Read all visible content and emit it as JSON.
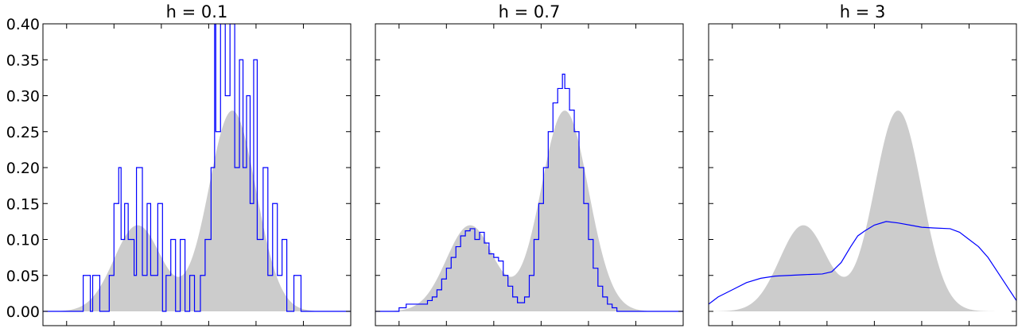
{
  "chart_data": [
    {
      "type": "area",
      "title": "h = 0.1",
      "ylim": [
        0,
        0.4
      ],
      "yticks": [
        "0.00",
        "0.05",
        "0.10",
        "0.15",
        "0.20",
        "0.25",
        "0.30",
        "0.35",
        "0.40"
      ],
      "yticks_shown": true,
      "xlim": [
        -3,
        10
      ],
      "grid": false,
      "series": [
        {
          "role": "true-density",
          "kind": "filled",
          "color": "#cccccc",
          "mixture": [
            {
              "weight": 0.3,
              "mean": 1.0,
              "sd": 1.0
            },
            {
              "weight": 0.7,
              "mean": 5.0,
              "sd": 1.0
            }
          ]
        },
        {
          "role": "estimate",
          "kind": "step",
          "color": "#0000ff",
          "points": [
            [
              -3,
              0
            ],
            [
              -1.3,
              0
            ],
            [
              -1.3,
              0.05
            ],
            [
              -1.0,
              0.05
            ],
            [
              -1.0,
              0
            ],
            [
              -0.9,
              0
            ],
            [
              -0.9,
              0.05
            ],
            [
              -0.6,
              0.05
            ],
            [
              -0.6,
              0
            ],
            [
              -0.2,
              0
            ],
            [
              -0.2,
              0.05
            ],
            [
              0.0,
              0.05
            ],
            [
              0.0,
              0.15
            ],
            [
              0.2,
              0.15
            ],
            [
              0.2,
              0.2
            ],
            [
              0.3,
              0.2
            ],
            [
              0.3,
              0.1
            ],
            [
              0.45,
              0.1
            ],
            [
              0.45,
              0.15
            ],
            [
              0.6,
              0.15
            ],
            [
              0.6,
              0.1
            ],
            [
              0.85,
              0.1
            ],
            [
              0.85,
              0.05
            ],
            [
              0.95,
              0.05
            ],
            [
              0.95,
              0.2
            ],
            [
              1.2,
              0.2
            ],
            [
              1.2,
              0.05
            ],
            [
              1.4,
              0.05
            ],
            [
              1.4,
              0.15
            ],
            [
              1.55,
              0.15
            ],
            [
              1.55,
              0.05
            ],
            [
              1.85,
              0.05
            ],
            [
              1.85,
              0.15
            ],
            [
              2.05,
              0.15
            ],
            [
              2.05,
              0
            ],
            [
              2.2,
              0
            ],
            [
              2.2,
              0.05
            ],
            [
              2.4,
              0.05
            ],
            [
              2.4,
              0.1
            ],
            [
              2.6,
              0.1
            ],
            [
              2.6,
              0
            ],
            [
              2.8,
              0
            ],
            [
              2.8,
              0.1
            ],
            [
              3.0,
              0.1
            ],
            [
              3.0,
              0
            ],
            [
              3.2,
              0
            ],
            [
              3.2,
              0.05
            ],
            [
              3.4,
              0.05
            ],
            [
              3.4,
              0
            ],
            [
              3.65,
              0
            ],
            [
              3.65,
              0.05
            ],
            [
              3.85,
              0.05
            ],
            [
              3.85,
              0.1
            ],
            [
              4.1,
              0.1
            ],
            [
              4.1,
              0.2
            ],
            [
              4.25,
              0.2
            ],
            [
              4.25,
              0.4
            ],
            [
              4.3,
              0.4
            ],
            [
              4.3,
              0.25
            ],
            [
              4.5,
              0.25
            ],
            [
              4.5,
              0.4
            ],
            [
              4.7,
              0.4
            ],
            [
              4.7,
              0.3
            ],
            [
              4.9,
              0.3
            ],
            [
              4.9,
              0.4
            ],
            [
              5.1,
              0.4
            ],
            [
              5.1,
              0.2
            ],
            [
              5.3,
              0.2
            ],
            [
              5.3,
              0.35
            ],
            [
              5.45,
              0.35
            ],
            [
              5.45,
              0.2
            ],
            [
              5.6,
              0.2
            ],
            [
              5.6,
              0.3
            ],
            [
              5.75,
              0.3
            ],
            [
              5.75,
              0.15
            ],
            [
              5.9,
              0.15
            ],
            [
              5.9,
              0.35
            ],
            [
              6.05,
              0.35
            ],
            [
              6.05,
              0.1
            ],
            [
              6.3,
              0.1
            ],
            [
              6.3,
              0.2
            ],
            [
              6.5,
              0.2
            ],
            [
              6.5,
              0.05
            ],
            [
              6.7,
              0.05
            ],
            [
              6.7,
              0.15
            ],
            [
              6.9,
              0.15
            ],
            [
              6.9,
              0.05
            ],
            [
              7.1,
              0.05
            ],
            [
              7.1,
              0.1
            ],
            [
              7.3,
              0.1
            ],
            [
              7.3,
              0
            ],
            [
              7.6,
              0
            ],
            [
              7.6,
              0.05
            ],
            [
              7.9,
              0.05
            ],
            [
              7.9,
              0
            ],
            [
              10,
              0
            ]
          ]
        }
      ]
    },
    {
      "type": "area",
      "title": "h = 0.7",
      "ylim": [
        0,
        0.4
      ],
      "yticks_shown": false,
      "xlim": [
        -3,
        10
      ],
      "grid": false,
      "series": [
        {
          "role": "true-density",
          "kind": "filled",
          "color": "#cccccc",
          "mixture": [
            {
              "weight": 0.3,
              "mean": 1.0,
              "sd": 1.0
            },
            {
              "weight": 0.7,
              "mean": 5.0,
              "sd": 1.0
            }
          ]
        },
        {
          "role": "estimate",
          "kind": "step",
          "color": "#0000ff",
          "points": [
            [
              -3,
              0
            ],
            [
              -2.0,
              0
            ],
            [
              -2.0,
              0.005
            ],
            [
              -1.7,
              0.005
            ],
            [
              -1.7,
              0.01
            ],
            [
              -0.8,
              0.01
            ],
            [
              -0.8,
              0.015
            ],
            [
              -0.6,
              0.015
            ],
            [
              -0.6,
              0.02
            ],
            [
              -0.4,
              0.02
            ],
            [
              -0.4,
              0.03
            ],
            [
              -0.2,
              0.03
            ],
            [
              -0.2,
              0.045
            ],
            [
              0.0,
              0.045
            ],
            [
              0.0,
              0.06
            ],
            [
              0.2,
              0.06
            ],
            [
              0.2,
              0.075
            ],
            [
              0.4,
              0.075
            ],
            [
              0.4,
              0.09
            ],
            [
              0.6,
              0.09
            ],
            [
              0.6,
              0.105
            ],
            [
              0.8,
              0.105
            ],
            [
              0.8,
              0.112
            ],
            [
              1.0,
              0.112
            ],
            [
              1.0,
              0.115
            ],
            [
              1.2,
              0.115
            ],
            [
              1.2,
              0.1
            ],
            [
              1.4,
              0.1
            ],
            [
              1.4,
              0.11
            ],
            [
              1.6,
              0.11
            ],
            [
              1.6,
              0.095
            ],
            [
              1.8,
              0.095
            ],
            [
              1.8,
              0.08
            ],
            [
              2.0,
              0.08
            ],
            [
              2.0,
              0.075
            ],
            [
              2.2,
              0.075
            ],
            [
              2.2,
              0.07
            ],
            [
              2.4,
              0.07
            ],
            [
              2.4,
              0.05
            ],
            [
              2.6,
              0.05
            ],
            [
              2.6,
              0.035
            ],
            [
              2.8,
              0.035
            ],
            [
              2.8,
              0.02
            ],
            [
              3.0,
              0.02
            ],
            [
              3.0,
              0.012
            ],
            [
              3.3,
              0.012
            ],
            [
              3.3,
              0.02
            ],
            [
              3.5,
              0.02
            ],
            [
              3.5,
              0.05
            ],
            [
              3.7,
              0.05
            ],
            [
              3.7,
              0.1
            ],
            [
              3.9,
              0.1
            ],
            [
              3.9,
              0.15
            ],
            [
              4.1,
              0.15
            ],
            [
              4.1,
              0.2
            ],
            [
              4.3,
              0.2
            ],
            [
              4.3,
              0.25
            ],
            [
              4.5,
              0.25
            ],
            [
              4.5,
              0.29
            ],
            [
              4.7,
              0.29
            ],
            [
              4.7,
              0.31
            ],
            [
              4.9,
              0.31
            ],
            [
              4.9,
              0.33
            ],
            [
              5.0,
              0.33
            ],
            [
              5.0,
              0.31
            ],
            [
              5.2,
              0.31
            ],
            [
              5.2,
              0.28
            ],
            [
              5.4,
              0.28
            ],
            [
              5.4,
              0.25
            ],
            [
              5.6,
              0.25
            ],
            [
              5.6,
              0.2
            ],
            [
              5.8,
              0.2
            ],
            [
              5.8,
              0.15
            ],
            [
              6.0,
              0.15
            ],
            [
              6.0,
              0.1
            ],
            [
              6.2,
              0.1
            ],
            [
              6.2,
              0.06
            ],
            [
              6.4,
              0.06
            ],
            [
              6.4,
              0.035
            ],
            [
              6.6,
              0.035
            ],
            [
              6.6,
              0.02
            ],
            [
              6.8,
              0.02
            ],
            [
              6.8,
              0.01
            ],
            [
              7.0,
              0.01
            ],
            [
              7.0,
              0.005
            ],
            [
              7.2,
              0.005
            ],
            [
              7.2,
              0
            ],
            [
              10,
              0
            ]
          ]
        }
      ]
    },
    {
      "type": "area",
      "title": "h = 3",
      "ylim": [
        0,
        0.4
      ],
      "yticks_shown": false,
      "xlim": [
        -3,
        10
      ],
      "grid": false,
      "series": [
        {
          "role": "true-density",
          "kind": "filled",
          "color": "#cccccc",
          "mixture": [
            {
              "weight": 0.3,
              "mean": 1.0,
              "sd": 1.0
            },
            {
              "weight": 0.7,
              "mean": 5.0,
              "sd": 1.0
            }
          ]
        },
        {
          "role": "estimate",
          "kind": "line",
          "color": "#0000ff",
          "points": [
            [
              -3,
              0.01
            ],
            [
              -2.6,
              0.02
            ],
            [
              -2.0,
              0.03
            ],
            [
              -1.4,
              0.04
            ],
            [
              -0.8,
              0.046
            ],
            [
              -0.2,
              0.049
            ],
            [
              0.4,
              0.05
            ],
            [
              1.0,
              0.051
            ],
            [
              1.8,
              0.052
            ],
            [
              2.2,
              0.055
            ],
            [
              2.6,
              0.068
            ],
            [
              3.0,
              0.09
            ],
            [
              3.3,
              0.105
            ],
            [
              3.6,
              0.112
            ],
            [
              4.0,
              0.12
            ],
            [
              4.5,
              0.125
            ],
            [
              5.0,
              0.123
            ],
            [
              5.5,
              0.12
            ],
            [
              6.0,
              0.117
            ],
            [
              6.5,
              0.116
            ],
            [
              7.2,
              0.115
            ],
            [
              7.6,
              0.11
            ],
            [
              8.0,
              0.1
            ],
            [
              8.4,
              0.09
            ],
            [
              8.8,
              0.075
            ],
            [
              9.2,
              0.055
            ],
            [
              9.6,
              0.035
            ],
            [
              10,
              0.015
            ]
          ]
        }
      ]
    }
  ]
}
